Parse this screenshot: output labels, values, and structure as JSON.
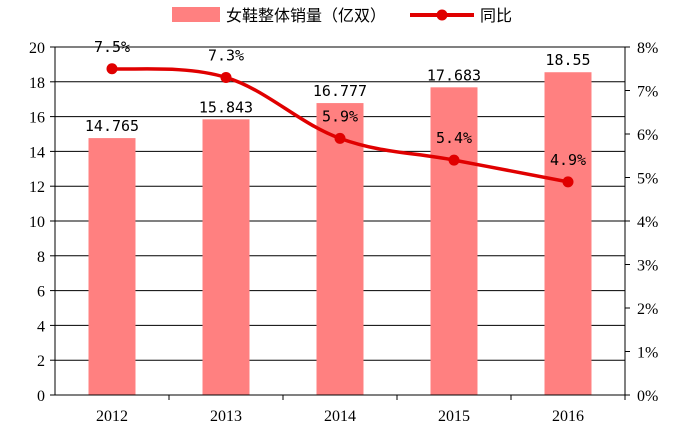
{
  "chart_data": {
    "type": "bar",
    "categories": [
      "2012",
      "2013",
      "2014",
      "2015",
      "2016"
    ],
    "series": [
      {
        "name": "女鞋整体销量（亿双）",
        "kind": "bar",
        "axis": "left",
        "color": "#FF8080",
        "values": [
          14.765,
          15.843,
          16.777,
          17.683,
          18.55
        ],
        "labels": [
          "14.765",
          "15.843",
          "16.777",
          "17.683",
          "18.55"
        ]
      },
      {
        "name": "同比",
        "kind": "line",
        "axis": "right",
        "color": "#E00000",
        "values": [
          7.5,
          7.3,
          5.9,
          5.4,
          4.9
        ],
        "labels": [
          "7.5%",
          "7.3%",
          "5.9%",
          "5.4%",
          "4.9%"
        ]
      }
    ],
    "y_left": {
      "range": [
        0,
        20
      ],
      "ticks": [
        "0",
        "2",
        "4",
        "6",
        "8",
        "10",
        "12",
        "14",
        "16",
        "18",
        "20"
      ]
    },
    "y_right": {
      "range": [
        0,
        8
      ],
      "unit": "%",
      "ticks": [
        "0%",
        "1%",
        "2%",
        "3%",
        "4%",
        "5%",
        "6%",
        "7%",
        "8%"
      ]
    },
    "grid": true,
    "legend_position": "top-center"
  }
}
